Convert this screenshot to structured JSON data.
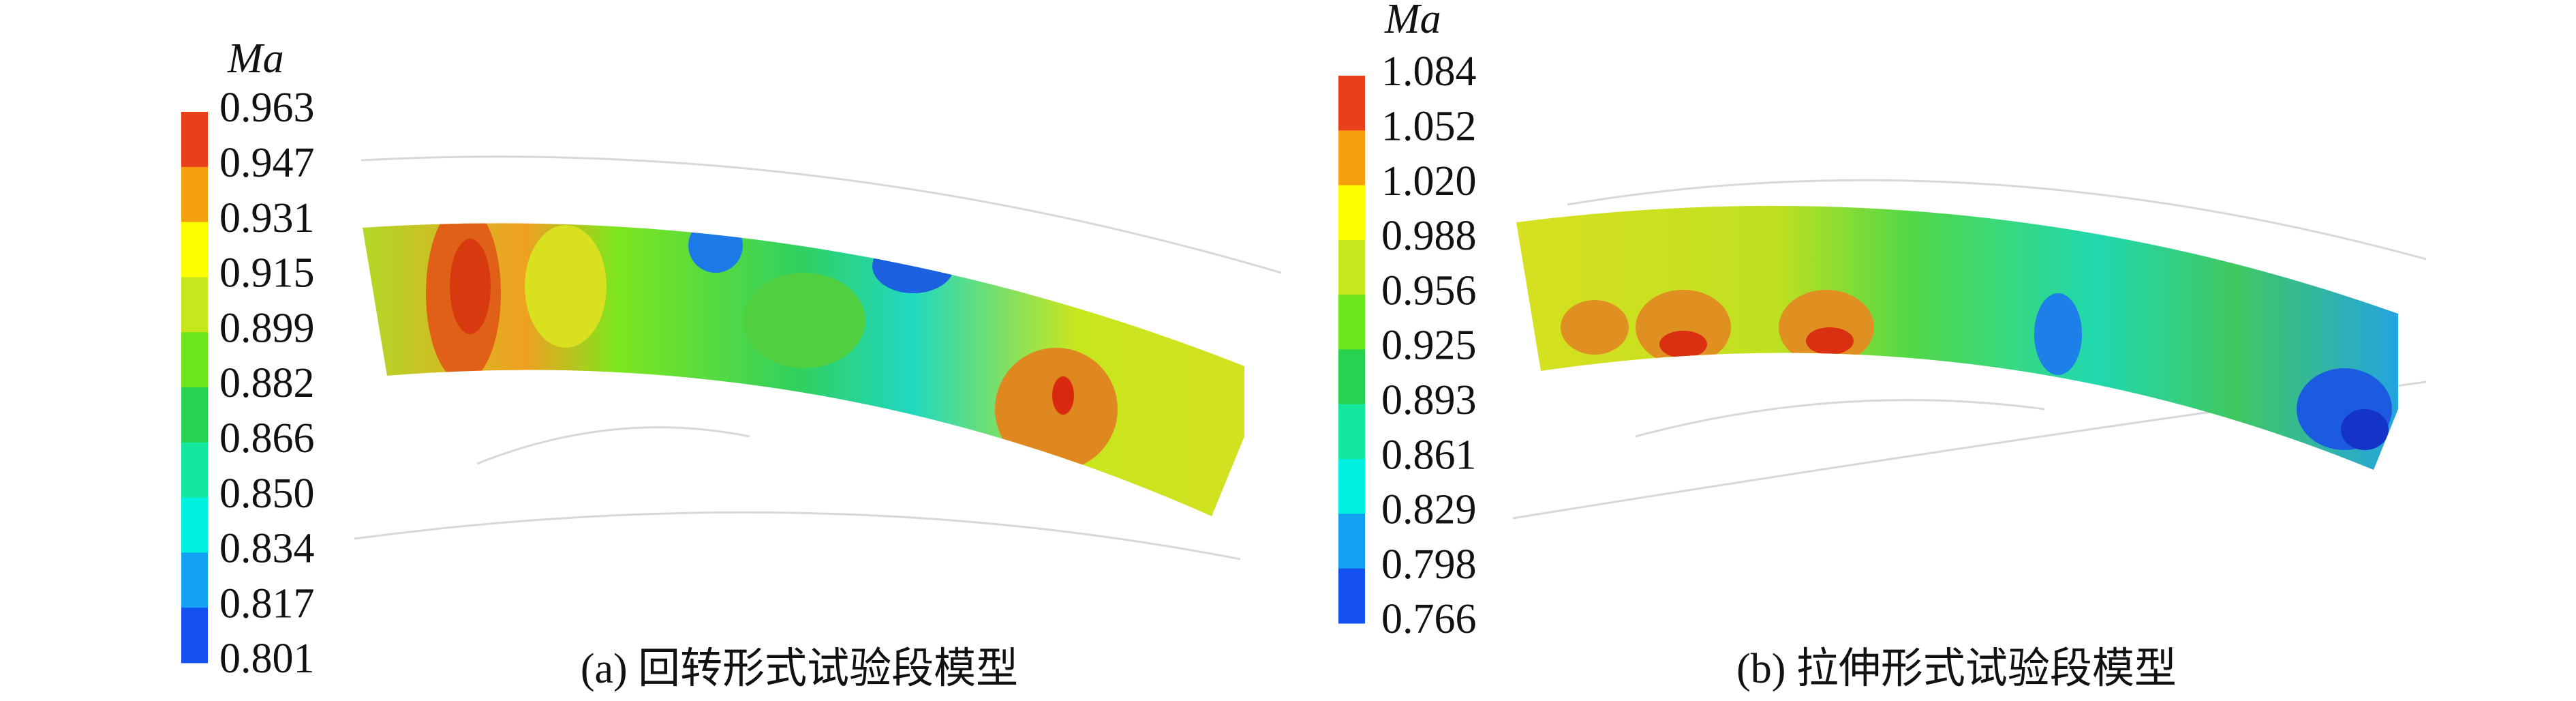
{
  "panels": [
    {
      "colorbar_title": "Ma",
      "ticks": [
        "0.963",
        "0.947",
        "0.931",
        "0.915",
        "0.899",
        "0.882",
        "0.866",
        "0.850",
        "0.834",
        "0.817",
        "0.801"
      ],
      "caption": "(a) 回转形式试验段模型"
    },
    {
      "colorbar_title": "Ma",
      "ticks": [
        "1.084",
        "1.052",
        "1.020",
        "0.988",
        "0.956",
        "0.925",
        "0.893",
        "0.861",
        "0.829",
        "0.798",
        "0.766"
      ],
      "caption": "(b) 拉伸形式试验段模型"
    }
  ]
}
